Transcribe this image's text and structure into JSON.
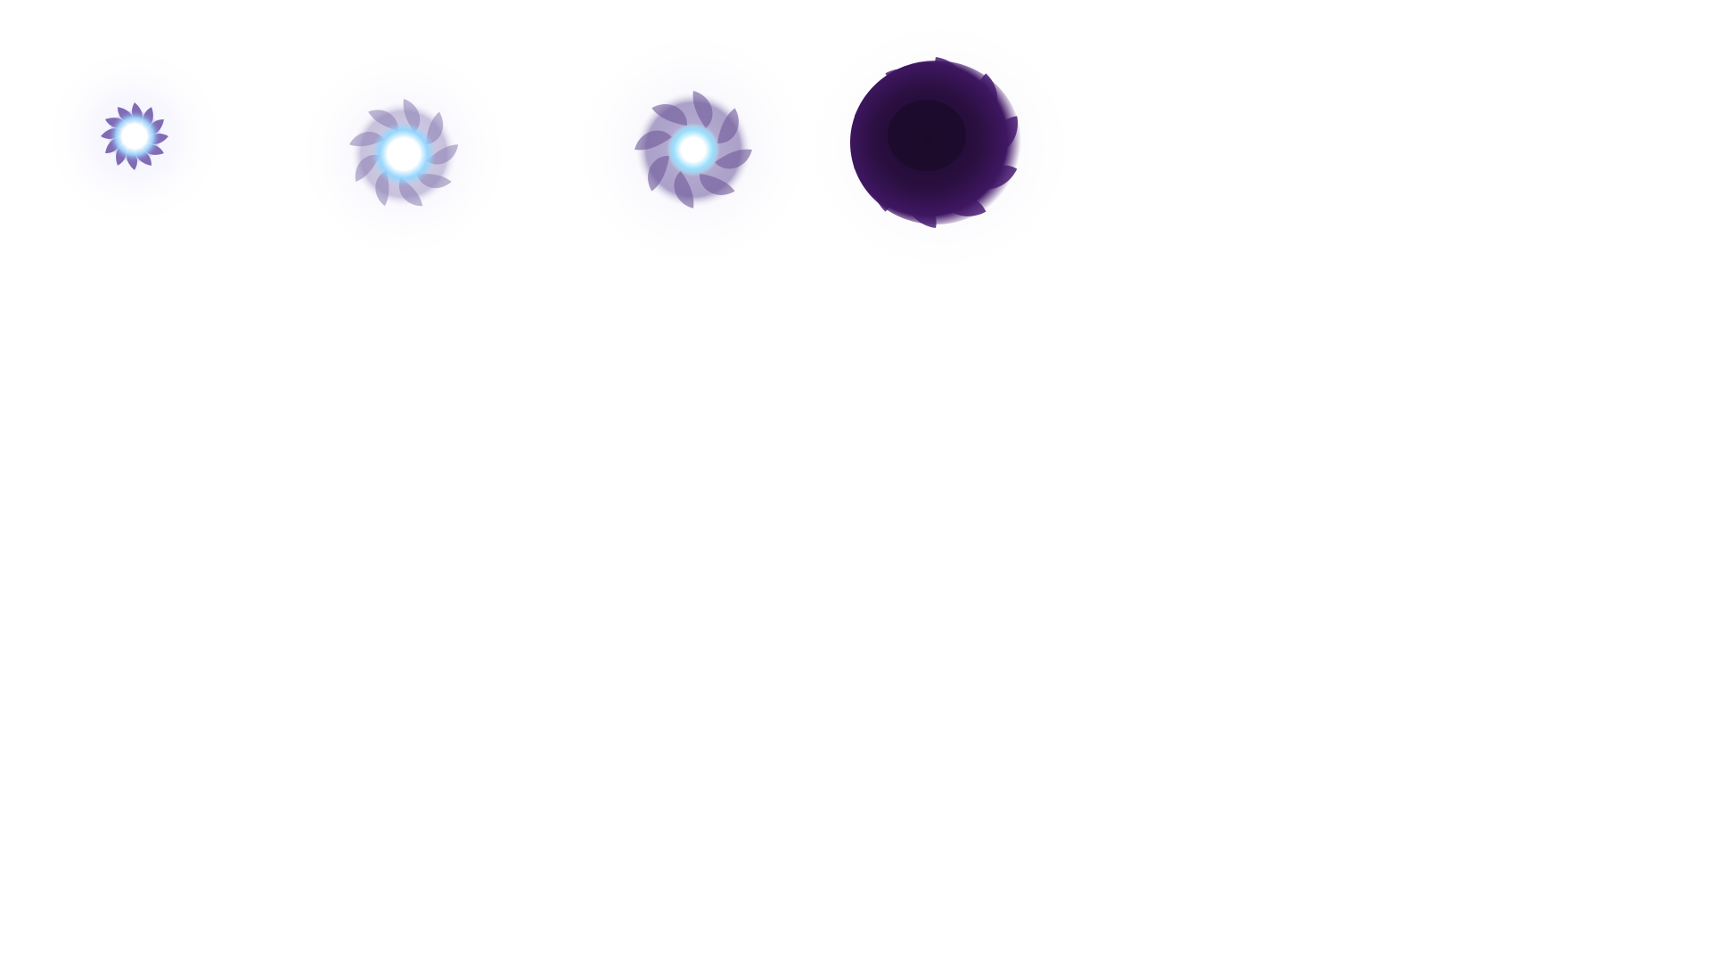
{
  "sprite_sheet": {
    "background": "#ffffff",
    "frames": [
      {
        "name": "frame-1",
        "core_color": "#ffffff",
        "glow_color": "#9fd8ff",
        "swirl_color": "#5b3f9a"
      },
      {
        "name": "frame-2",
        "core_color": "#ffffff",
        "glow_color": "#8fd6ff",
        "swirl_color": "#8c7fb3"
      },
      {
        "name": "frame-3",
        "core_color": "#ffffff",
        "glow_color": "#8fe0ff",
        "swirl_color": "#6f5a9a"
      },
      {
        "name": "frame-4",
        "core_color": "#1c0b2b",
        "glow_color": "#3a1458",
        "swirl_color": "#4b1e73"
      }
    ]
  }
}
